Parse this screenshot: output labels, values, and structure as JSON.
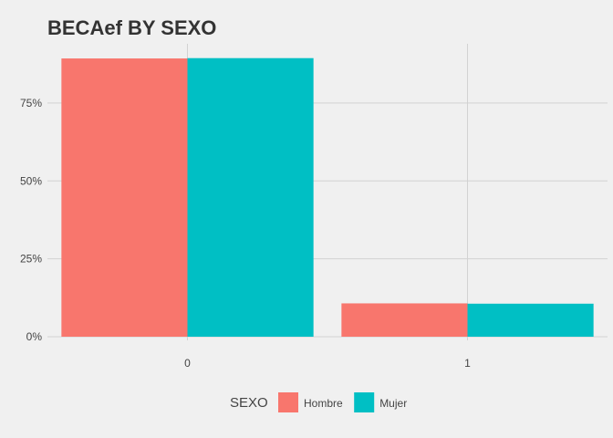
{
  "chart_data": {
    "type": "bar",
    "title": "BECAef BY SEXO",
    "xlabel": "",
    "ylabel": "",
    "categories": [
      "0",
      "1"
    ],
    "series": [
      {
        "name": "Hombre",
        "color": "#f8766d",
        "values": [
          0.893,
          0.107
        ]
      },
      {
        "name": "Mujer",
        "color": "#00bfc4",
        "values": [
          0.894,
          0.106
        ]
      }
    ],
    "ylim": [
      0,
      0.94
    ],
    "yticks": [
      0,
      0.25,
      0.5,
      0.75
    ],
    "ytick_labels": [
      "0%",
      "25%",
      "50%",
      "75%"
    ],
    "grid": true,
    "legend": {
      "title": "SEXO",
      "position": "bottom"
    }
  }
}
